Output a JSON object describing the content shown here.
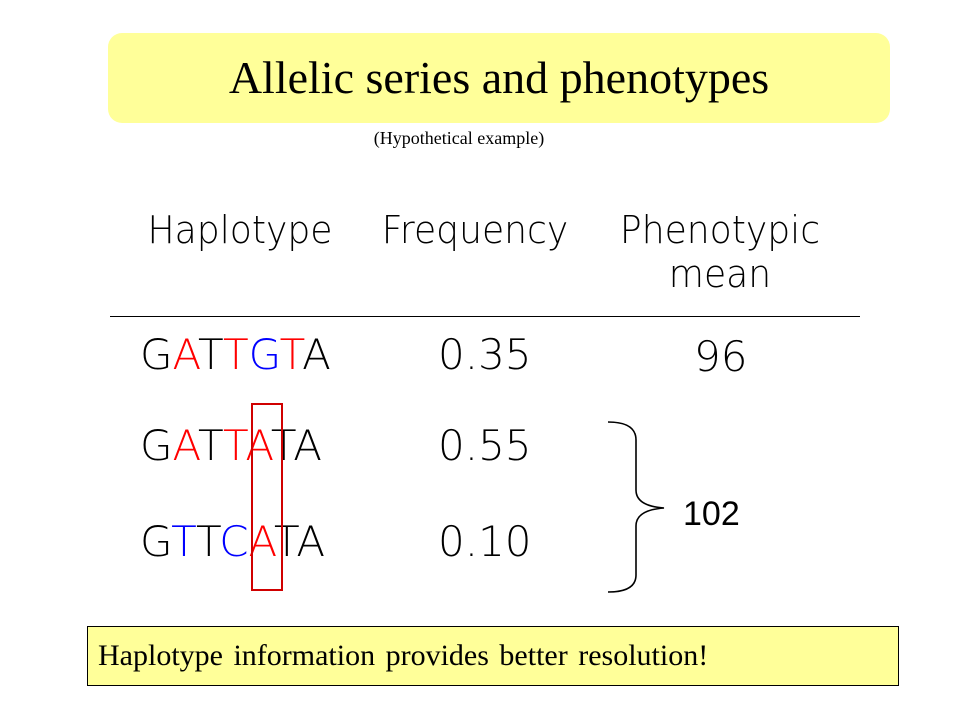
{
  "title": "Allelic series and phenotypes",
  "subtitle": "(Hypothetical example)",
  "table": {
    "headers": {
      "haplotype": "Haplotype",
      "frequency": "Frequency",
      "phenotypic_mean_line1": "Phenotypic",
      "phenotypic_mean_line2": "mean"
    },
    "rows": [
      {
        "haplotype_parts": [
          {
            "text": "G",
            "color": "#000000"
          },
          {
            "text": "A",
            "color": "#ff0000"
          },
          {
            "text": "T",
            "color": "#000000"
          },
          {
            "text": "T",
            "color": "#ff0000"
          },
          {
            "text": "G",
            "color": "#0000ff"
          },
          {
            "text": "T",
            "color": "#ff0000"
          },
          {
            "text": "A",
            "color": "#000000"
          }
        ],
        "frequency": "0.35",
        "phenotypic_mean": "96"
      },
      {
        "haplotype_parts": [
          {
            "text": "G",
            "color": "#000000"
          },
          {
            "text": "A",
            "color": "#ff0000"
          },
          {
            "text": "T",
            "color": "#000000"
          },
          {
            "text": "T",
            "color": "#ff0000"
          },
          {
            "text": "A",
            "color": "#ff0000"
          },
          {
            "text": "T",
            "color": "#000000"
          },
          {
            "text": "A",
            "color": "#000000"
          }
        ],
        "frequency": "0.55"
      },
      {
        "haplotype_parts": [
          {
            "text": "G",
            "color": "#000000"
          },
          {
            "text": "T",
            "color": "#0000ff"
          },
          {
            "text": "T",
            "color": "#000000"
          },
          {
            "text": "C",
            "color": "#0000ff"
          },
          {
            "text": "A",
            "color": "#ff0000"
          },
          {
            "text": "T",
            "color": "#000000"
          },
          {
            "text": "A",
            "color": "#000000"
          }
        ],
        "frequency": "0.10"
      }
    ],
    "merged_phenotypic_mean": "102"
  },
  "footer": "Haplotype information provides better resolution!",
  "colors": {
    "title_bg": "#ffff99",
    "highlight_box": "#d00000"
  }
}
